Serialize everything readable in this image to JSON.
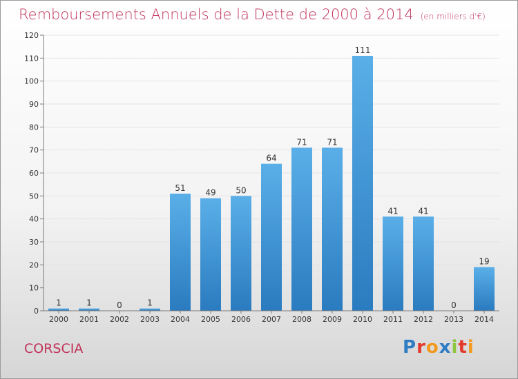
{
  "title": "Remboursements Annuels de la Dette de 2000 à 2014",
  "unit_label": "(en milliers d'€)",
  "commune": "CORSCIA",
  "logo": {
    "text": "Proxiti",
    "letters": [
      "P",
      "r",
      "o",
      "x",
      "i",
      "t",
      "i"
    ]
  },
  "colors": {
    "title": "#c0325a",
    "bar_top": "#5aafe8",
    "bar_bottom": "#2a7bbf",
    "axis": "#7a7a7a",
    "grid": "#e3e3e3"
  },
  "chart_data": {
    "type": "bar",
    "title": "Remboursements Annuels de la Dette de 2000 à 2014",
    "categories": [
      "2000",
      "2001",
      "2002",
      "2003",
      "2004",
      "2005",
      "2006",
      "2007",
      "2008",
      "2009",
      "2010",
      "2011",
      "2012",
      "2013",
      "2014"
    ],
    "values": [
      1,
      1,
      0,
      1,
      51,
      49,
      50,
      64,
      71,
      71,
      111,
      41,
      41,
      0,
      19
    ],
    "data_labels": [
      "1",
      "1",
      "0",
      "1",
      "51",
      "49",
      "50",
      "64",
      "71",
      "71",
      "111",
      "41",
      "41",
      "0",
      "19"
    ],
    "ylim": [
      0,
      120
    ],
    "yticks": [
      0,
      10,
      20,
      30,
      40,
      50,
      60,
      70,
      80,
      90,
      100,
      110,
      120
    ],
    "ytick_labels": [
      "0",
      "10",
      "20",
      "30",
      "40",
      "50",
      "60",
      "70",
      "80",
      "90",
      "100",
      "110",
      "120"
    ],
    "grid": true,
    "legend": "none"
  }
}
